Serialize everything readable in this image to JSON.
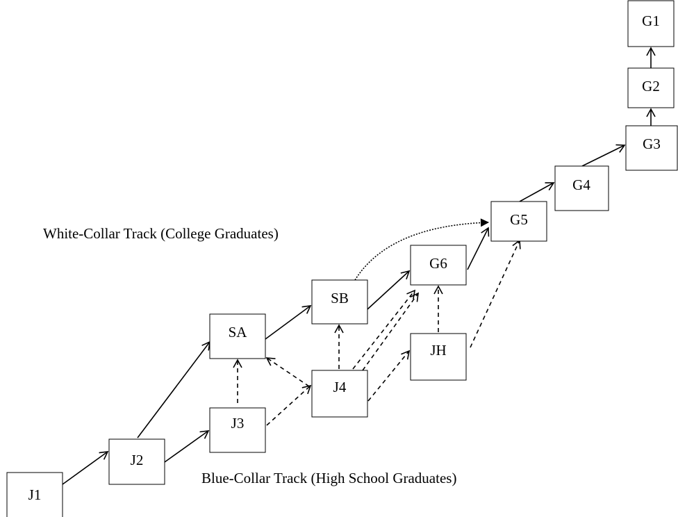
{
  "nodes": [
    {
      "label": "J1"
    },
    {
      "label": "J2"
    },
    {
      "label": "J3"
    },
    {
      "label": "J4"
    },
    {
      "label": "SA"
    },
    {
      "label": "SB"
    },
    {
      "label": "JH"
    },
    {
      "label": "G6"
    },
    {
      "label": "G5"
    },
    {
      "label": "G4"
    },
    {
      "label": "G3"
    },
    {
      "label": "G2"
    },
    {
      "label": "G1"
    }
  ],
  "tracks": {
    "white_collar": "White-Collar Track (College Graduates)",
    "blue_collar": "Blue-Collar Track (High School Graduates)"
  }
}
